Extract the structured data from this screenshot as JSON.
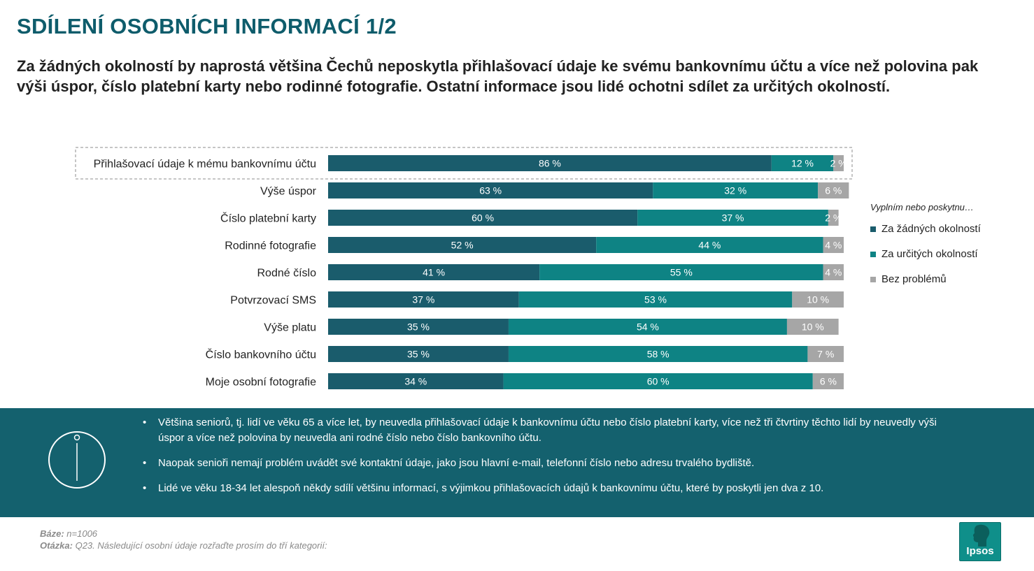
{
  "title": "SDÍLENÍ OSOBNÍCH INFORMACÍ 1/2",
  "subtitle": "Za žádných okolností by naprostá většina Čechů neposkytla přihlašovací údaje ke svému bankovnímu účtu a více než polovina pak výši úspor, číslo platební karty nebo rodinné fotografie. Ostatní informace jsou lidé ochotni sdílet za určitých okolností.",
  "colors": {
    "dark": "#1a5c6c",
    "teal": "#0e8384",
    "gray": "#a6a6a6",
    "panel": "#14616e",
    "title": "#0e5c6b"
  },
  "chart_data": {
    "type": "bar",
    "orientation": "horizontal",
    "stacked": true,
    "value_suffix": " %",
    "xlim": [
      0,
      100
    ],
    "highlighted_category": "Přihlašovací údaje k mému bankovnímu účtu",
    "categories": [
      "Přihlašovací údaje k mému bankovnímu účtu",
      "Výše úspor",
      "Číslo platební karty",
      "Rodinné fotografie",
      "Rodné číslo",
      "Potvrzovací SMS",
      "Výše platu",
      "Číslo bankovního účtu",
      "Moje osobní fotografie"
    ],
    "series": [
      {
        "name": "Za žádných okolností",
        "values": [
          86,
          63,
          60,
          52,
          41,
          37,
          35,
          35,
          34
        ]
      },
      {
        "name": "Za určitých okolností",
        "values": [
          12,
          32,
          37,
          44,
          55,
          53,
          54,
          58,
          60
        ]
      },
      {
        "name": "Bez problémů",
        "values": [
          2,
          6,
          2,
          4,
          4,
          10,
          10,
          7,
          6
        ]
      }
    ],
    "legend_title": "Vyplním nebo poskytnu…",
    "legend_position": "right"
  },
  "panel": {
    "bullets": [
      "Většina seniorů, tj. lidí ve věku 65 a více let, by neuvedla přihlašovací údaje k bankovnímu účtu nebo číslo platební karty, více než tři čtvrtiny těchto lidí by neuvedly výši úspor a více než polovina by neuvedla ani rodné číslo nebo číslo bankovního účtu.",
      "Naopak senioři nemají problém uvádět své kontaktní údaje, jako jsou hlavní e-mail, telefonní číslo nebo adresu trvalého bydliště.",
      "Lidé ve věku 18-34 let alespoň někdy sdílí většinu informací, s výjimkou přihlašovacích údajů k bankovnímu účtu, které by poskytli jen dva z 10."
    ],
    "icon": "info-icon"
  },
  "footer": {
    "base_label": "Báze:",
    "base_value": " n=1006",
    "question_label": "Otázka:",
    "question_value": " Q23. Následující osobní údaje rozřaďte prosím do tří kategorií:"
  },
  "logo": {
    "text": "Ipsos",
    "icon": "ipsos-head-icon"
  }
}
